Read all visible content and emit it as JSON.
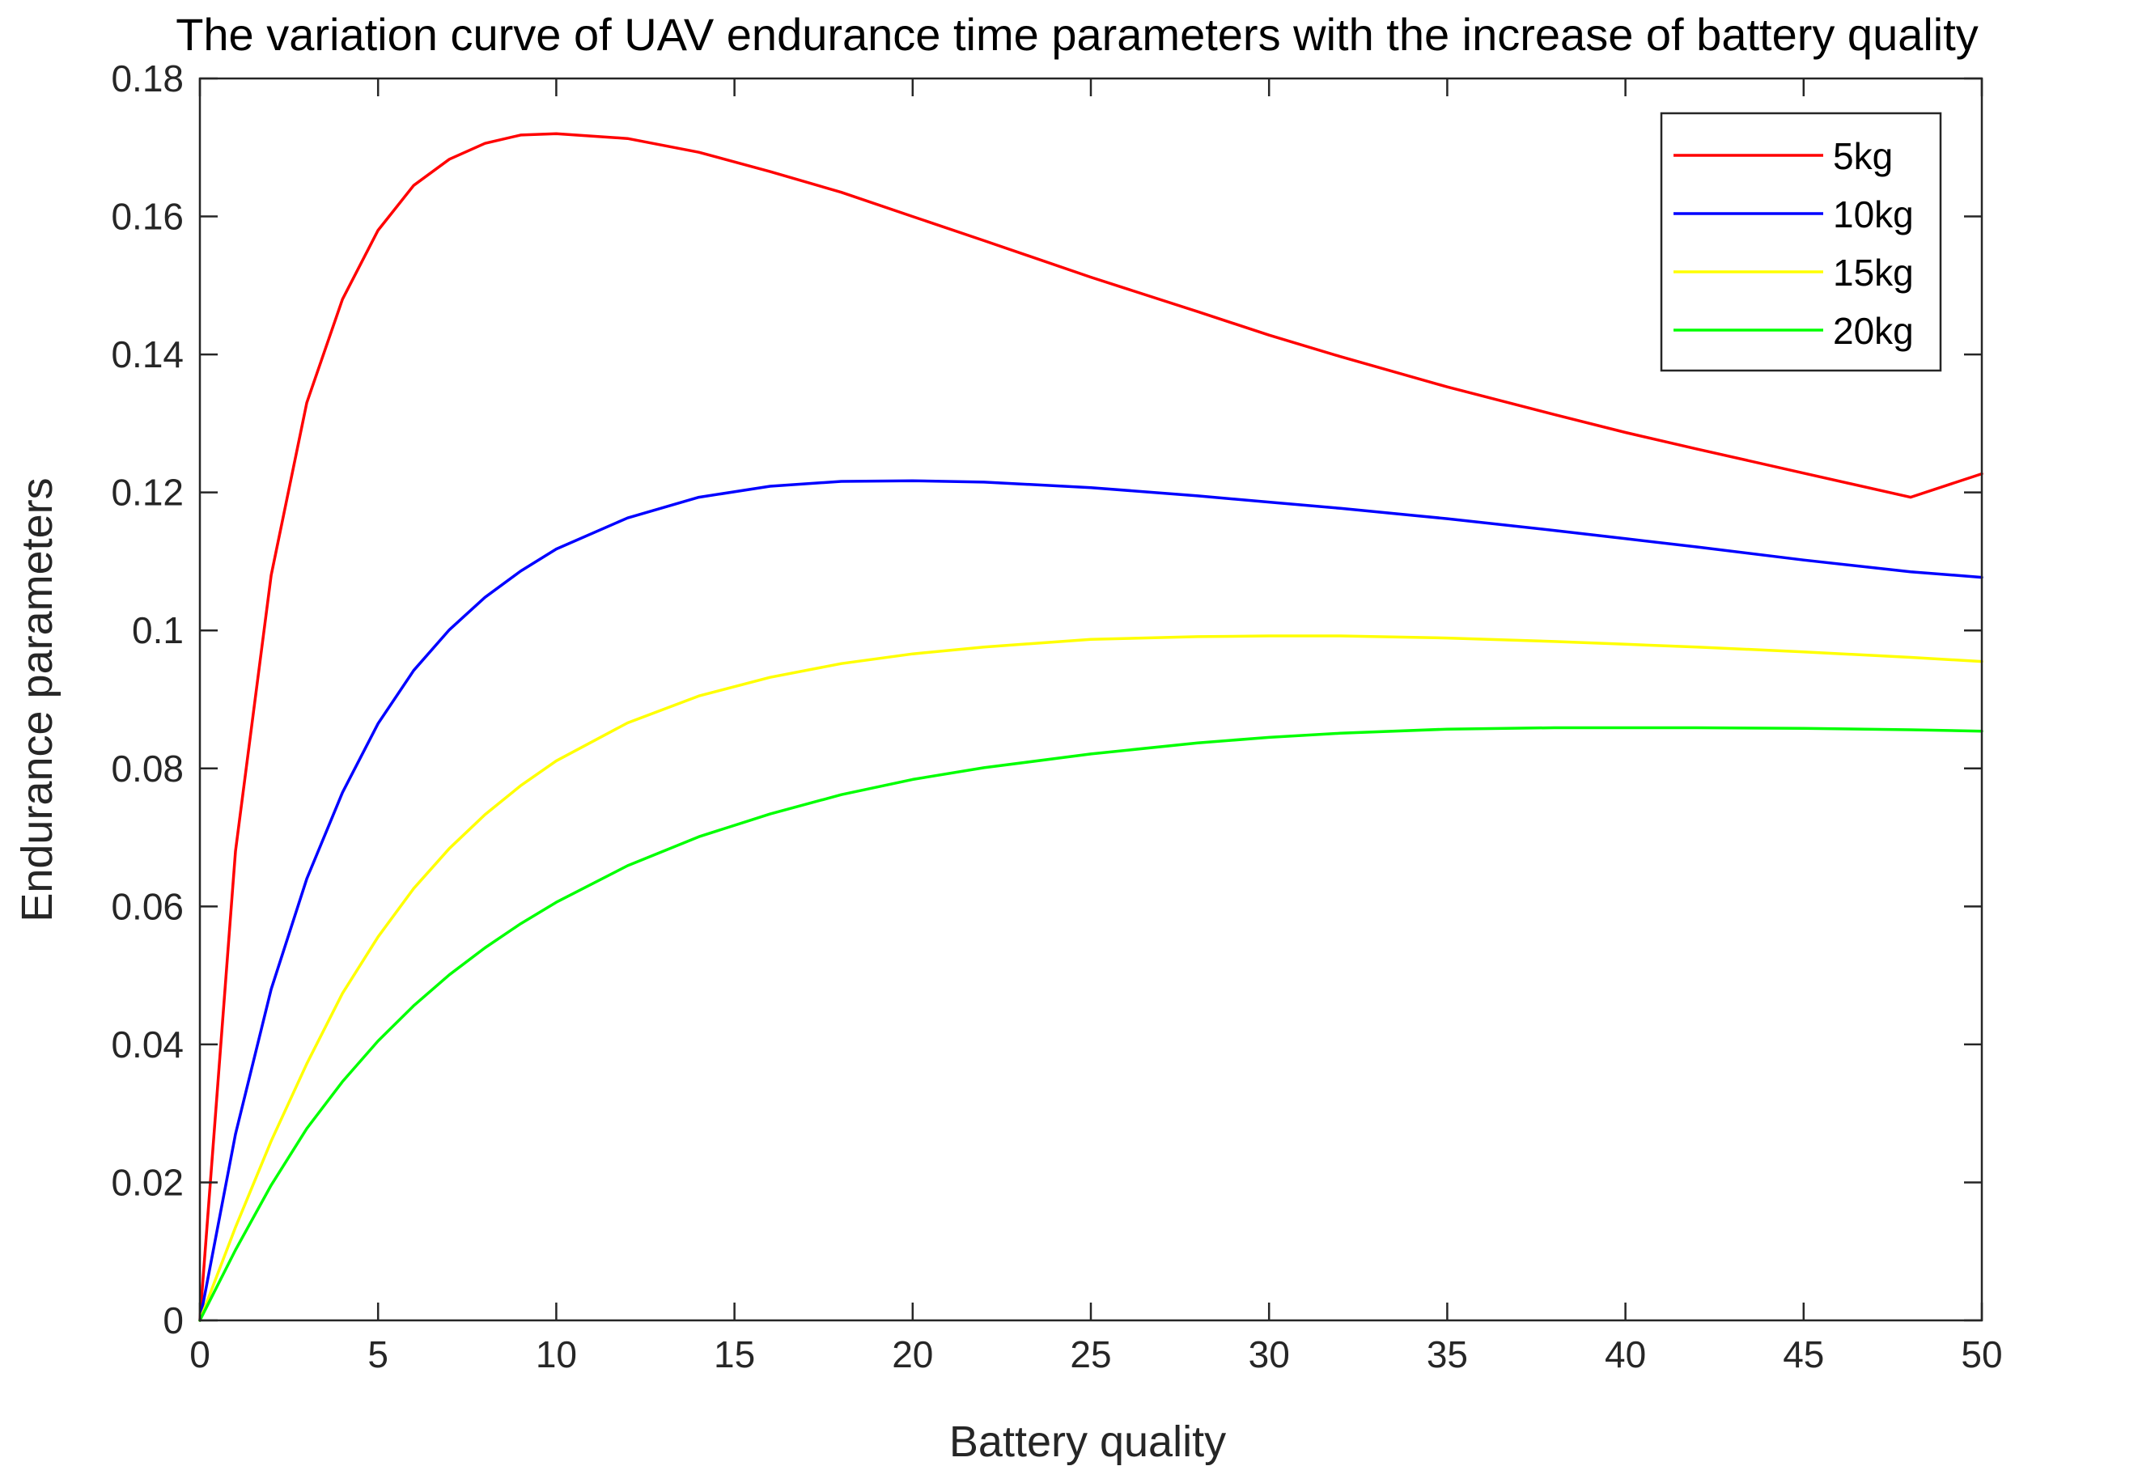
{
  "chart_data": {
    "type": "line",
    "title": "The variation curve of UAV endurance time parameters with the increase of battery quality",
    "xlabel": "Battery quality",
    "ylabel": "Endurance parameters",
    "xlim": [
      0,
      50
    ],
    "ylim": [
      0,
      0.18
    ],
    "xticks": [
      0,
      5,
      10,
      15,
      20,
      25,
      30,
      35,
      40,
      45,
      50
    ],
    "xtick_labels": [
      "0",
      "5",
      "10",
      "15",
      "20",
      "25",
      "30",
      "35",
      "40",
      "45",
      "50"
    ],
    "yticks": [
      0,
      0.02,
      0.04,
      0.06,
      0.08,
      0.1,
      0.12,
      0.14,
      0.16,
      0.18
    ],
    "ytick_labels": [
      "0",
      "0.02",
      "0.04",
      "0.06",
      "0.08",
      "0.1",
      "0.12",
      "0.14",
      "0.16",
      "0.18"
    ],
    "grid": false,
    "legend_position": "top-right",
    "x": [
      0,
      1,
      2,
      3,
      4,
      5,
      6,
      7,
      8,
      9,
      10,
      12,
      14,
      16,
      18,
      20,
      22,
      25,
      28,
      30,
      32,
      35,
      38,
      40,
      42,
      45,
      48,
      50
    ],
    "series": [
      {
        "name": "5kg",
        "color": "#ff0000",
        "values": [
          0,
          0.068,
          0.108,
          0.133,
          0.148,
          0.158,
          0.1645,
          0.1683,
          0.1706,
          0.1718,
          0.172,
          0.1713,
          0.1693,
          0.1665,
          0.1635,
          0.16,
          0.1565,
          0.1512,
          0.1462,
          0.1428,
          0.1397,
          0.1353,
          0.1313,
          0.1287,
          0.1263,
          0.1228,
          0.1193,
          0.1227
        ]
      },
      {
        "name": "10kg",
        "color": "#0000ff",
        "values": [
          0,
          0.027,
          0.048,
          0.064,
          0.0765,
          0.0865,
          0.0942,
          0.1001,
          0.1048,
          0.1086,
          0.1118,
          0.1163,
          0.1193,
          0.1209,
          0.1216,
          0.1217,
          0.1215,
          0.1207,
          0.1195,
          0.1186,
          0.1177,
          0.1162,
          0.1145,
          0.1133,
          0.1121,
          0.1102,
          0.1085,
          0.1077
        ]
      },
      {
        "name": "15kg",
        "color": "#ffff00",
        "values": [
          0,
          0.0135,
          0.026,
          0.0372,
          0.0474,
          0.0556,
          0.0626,
          0.0684,
          0.0733,
          0.0775,
          0.0811,
          0.0866,
          0.0905,
          0.0932,
          0.0952,
          0.0966,
          0.0976,
          0.0987,
          0.0991,
          0.0992,
          0.0992,
          0.0989,
          0.0984,
          0.098,
          0.0976,
          0.0969,
          0.0961,
          0.0955
        ]
      },
      {
        "name": "20kg",
        "color": "#00ff00",
        "values": [
          0,
          0.0102,
          0.0196,
          0.0278,
          0.0346,
          0.0405,
          0.0456,
          0.0501,
          0.054,
          0.0575,
          0.0606,
          0.0659,
          0.0701,
          0.0734,
          0.0762,
          0.0784,
          0.0801,
          0.0821,
          0.0837,
          0.0845,
          0.0851,
          0.0857,
          0.0859,
          0.0859,
          0.0859,
          0.0858,
          0.0856,
          0.0854
        ]
      }
    ]
  }
}
